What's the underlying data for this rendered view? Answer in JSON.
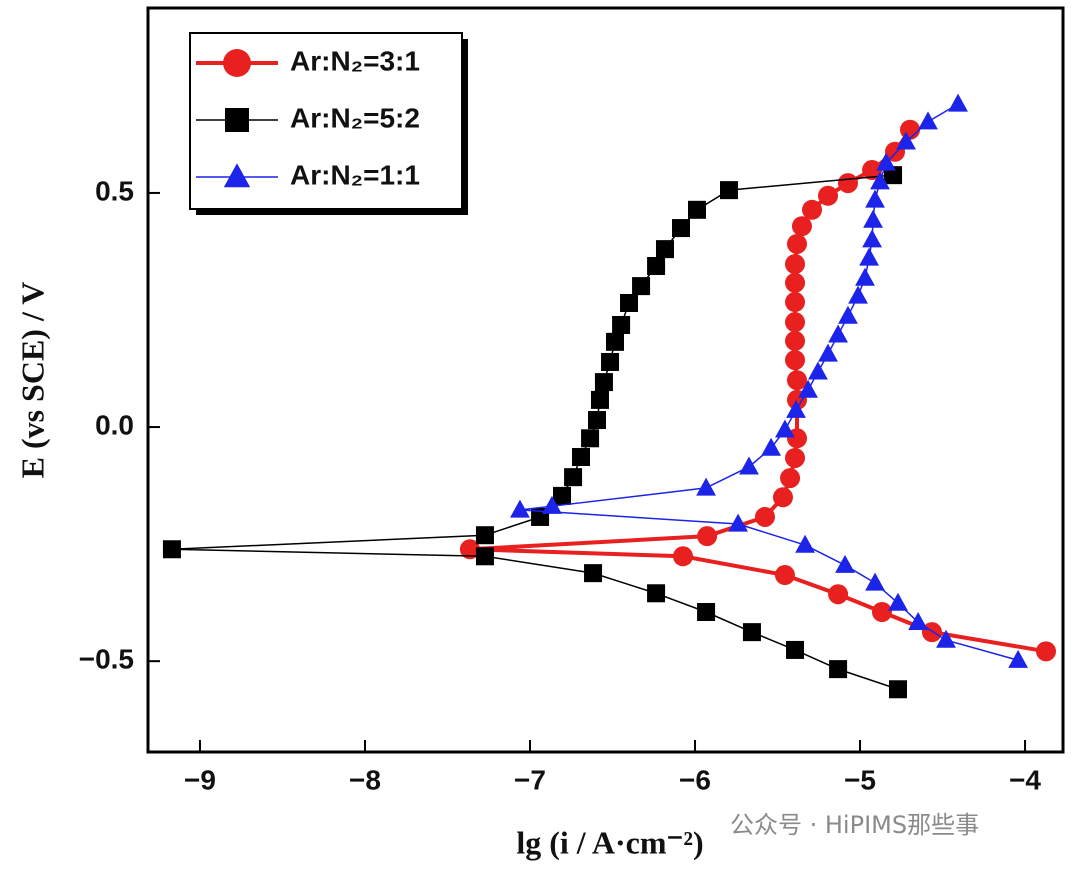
{
  "chart_data": {
    "type": "line",
    "xlabel": "lg (i / A·cm⁻²)",
    "ylabel": "E (vs SCE) / V",
    "watermark": "公众号 · HiPIMS那些事",
    "xlim": [
      -9.315,
      -3.77
    ],
    "ylim": [
      -0.694,
      0.895
    ],
    "xticks": [
      {
        "value": -9,
        "label": "−9"
      },
      {
        "value": -8,
        "label": "−8"
      },
      {
        "value": -7,
        "label": "−7"
      },
      {
        "value": -6,
        "label": "−6"
      },
      {
        "value": -5,
        "label": "−5"
      },
      {
        "value": -4,
        "label": "−4"
      }
    ],
    "yticks": [
      {
        "value": -0.5,
        "label": "−0.5"
      },
      {
        "value": 0,
        "label": "0.0"
      },
      0.5
    ],
    "legend": "upper-left",
    "series": [
      {
        "name": "Ar:N₂=3:1",
        "color": "#e8201f",
        "marker": "circle",
        "width": 4,
        "x": [
          -3.873,
          -4.564,
          -4.867,
          -5.133,
          -5.455,
          -6.073,
          -7.364,
          -5.927,
          -5.576,
          -5.467,
          -5.424,
          -5.394,
          -5.382,
          -5.382,
          -5.382,
          -5.394,
          -5.394,
          -5.394,
          -5.394,
          -5.394,
          -5.394,
          -5.382,
          -5.352,
          -5.291,
          -5.194,
          -5.073,
          -4.927,
          -4.788,
          -4.697
        ],
        "y": [
          -0.479,
          -0.438,
          -0.395,
          -0.357,
          -0.316,
          -0.276,
          -0.261,
          -0.233,
          -0.192,
          -0.15,
          -0.109,
          -0.066,
          -0.024,
          0.058,
          0.1,
          0.143,
          0.184,
          0.224,
          0.267,
          0.308,
          0.348,
          0.391,
          0.429,
          0.464,
          0.494,
          0.521,
          0.549,
          0.588,
          0.635
        ]
      },
      {
        "name": "Ar:N₂=5:2",
        "color": "#000000",
        "marker": "square",
        "width": 1.5,
        "x": [
          -4.77,
          -5.133,
          -5.394,
          -5.655,
          -5.933,
          -6.236,
          -6.618,
          -7.273,
          -9.17,
          -7.273,
          -6.939,
          -6.806,
          -6.739,
          -6.691,
          -6.636,
          -6.594,
          -6.576,
          -6.552,
          -6.515,
          -6.485,
          -6.448,
          -6.4,
          -6.327,
          -6.236,
          -6.182,
          -6.085,
          -5.988,
          -5.794,
          -4.8
        ],
        "y": [
          -0.56,
          -0.517,
          -0.476,
          -0.438,
          -0.395,
          -0.355,
          -0.312,
          -0.276,
          -0.261,
          -0.231,
          -0.192,
          -0.147,
          -0.107,
          -0.064,
          -0.024,
          0.015,
          0.058,
          0.096,
          0.139,
          0.182,
          0.218,
          0.265,
          0.301,
          0.344,
          0.38,
          0.425,
          0.464,
          0.506,
          0.538
        ]
      },
      {
        "name": "Ar:N₂=1:1",
        "color": "#1b24e8",
        "marker": "triangle",
        "width": 1.5,
        "x": [
          -4.042,
          -4.479,
          -4.648,
          -4.77,
          -4.909,
          -5.091,
          -5.333,
          -5.739,
          -7.061,
          -6.867,
          -5.933,
          -5.673,
          -5.539,
          -5.455,
          -5.388,
          -5.315,
          -5.255,
          -5.194,
          -5.133,
          -5.073,
          -5.012,
          -4.97,
          -4.945,
          -4.927,
          -4.921,
          -4.909,
          -4.879,
          -4.842,
          -4.721,
          -4.588,
          -4.406
        ],
        "y": [
          -0.498,
          -0.455,
          -0.417,
          -0.376,
          -0.333,
          -0.295,
          -0.252,
          -0.207,
          -0.177,
          -0.169,
          -0.13,
          -0.085,
          -0.045,
          -0.006,
          0.036,
          0.079,
          0.118,
          0.156,
          0.197,
          0.237,
          0.28,
          0.318,
          0.361,
          0.4,
          0.442,
          0.485,
          0.524,
          0.564,
          0.609,
          0.652,
          0.69
        ]
      }
    ]
  }
}
